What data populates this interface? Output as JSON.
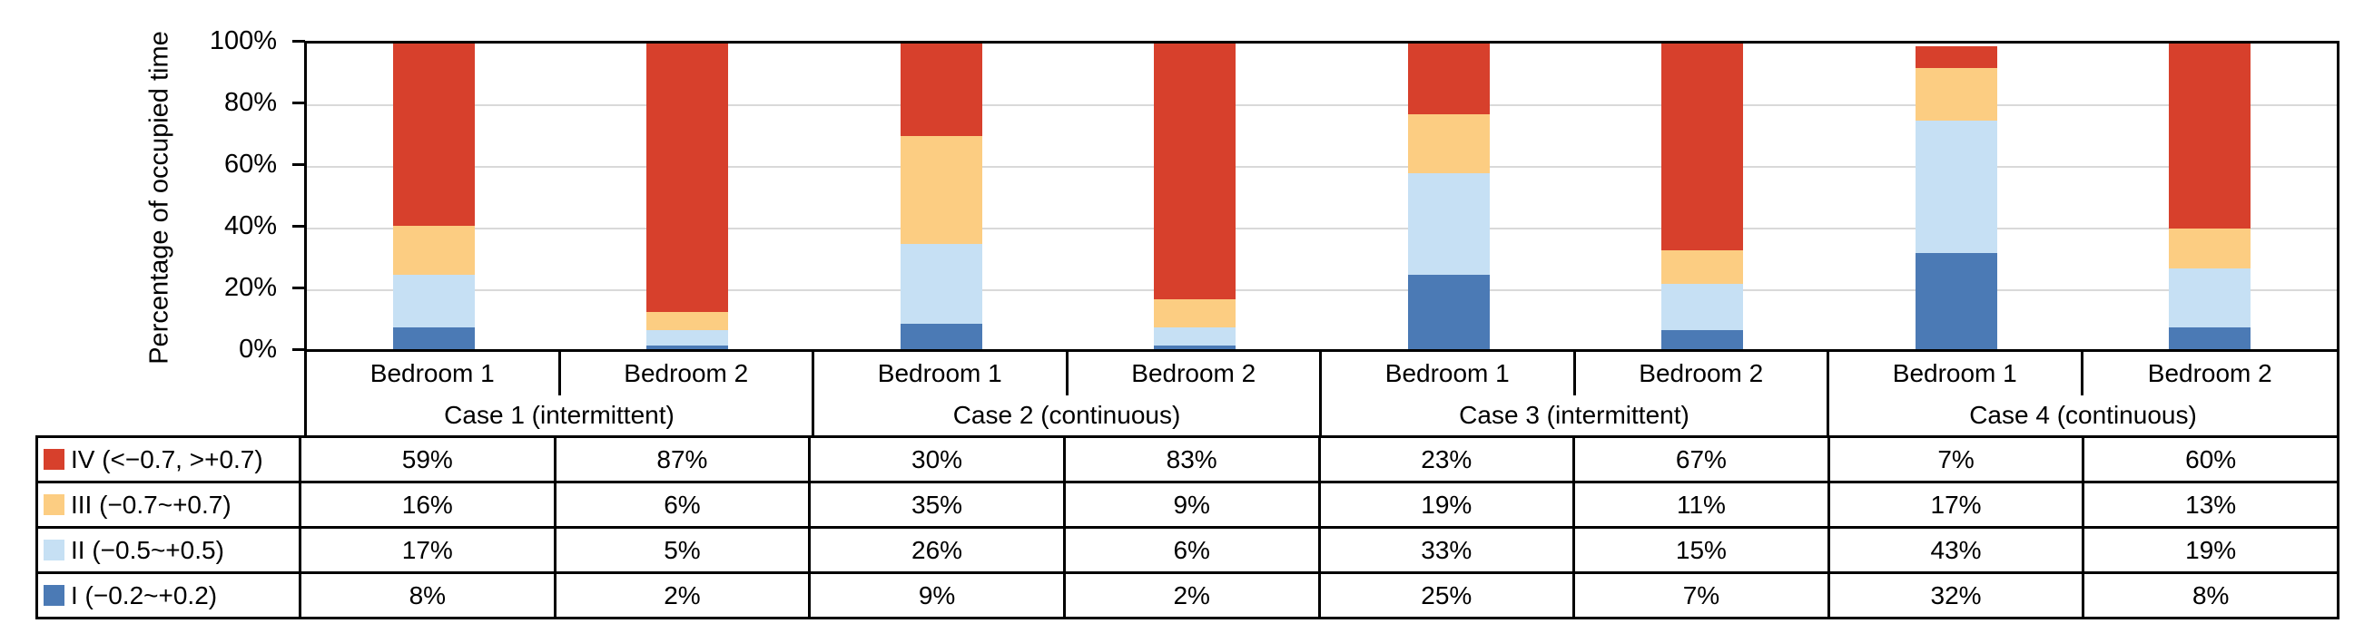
{
  "chart_data": {
    "type": "bar",
    "variant": "stacked-100-percent",
    "title": "",
    "ylabel": "Percentage of occupied time",
    "xlabel": "",
    "ylim": [
      0,
      100
    ],
    "yticks": [
      0,
      20,
      40,
      60,
      80,
      100
    ],
    "ytick_suffix": "%",
    "grid": true,
    "legend_position": "table-rows-left",
    "case_labels": [
      "Case 1 (intermittent)",
      "Case 2 (continuous)",
      "Case 3 (intermittent)",
      "Case 4 (continuous)"
    ],
    "categories": [
      "Bedroom 1",
      "Bedroom 2",
      "Bedroom 1",
      "Bedroom 2",
      "Bedroom 1",
      "Bedroom 2",
      "Bedroom 1",
      "Bedroom 2"
    ],
    "stack_order_bottom_to_top": [
      "I",
      "II",
      "III",
      "IV"
    ],
    "value_suffix": "%",
    "series": [
      {
        "name": "IV (<−0.7, >+0.7)",
        "color": "#D7402C",
        "values": [
          59,
          87,
          30,
          83,
          23,
          67,
          7,
          60
        ]
      },
      {
        "name": "III (−0.7~+0.7)",
        "color": "#FCCD82",
        "values": [
          16,
          6,
          35,
          9,
          19,
          11,
          17,
          13
        ]
      },
      {
        "name": "II (−0.5~+0.5)",
        "color": "#C6E0F4",
        "values": [
          17,
          5,
          26,
          6,
          33,
          15,
          43,
          19
        ]
      },
      {
        "name": "I (−0.2~+0.2)",
        "color": "#4B7AB5",
        "values": [
          8,
          2,
          9,
          2,
          25,
          7,
          32,
          8
        ]
      }
    ]
  },
  "colors": {
    "axis": "#000000",
    "gridline": "#D9D9D9",
    "background": "#FFFFFF",
    "text": "#000000"
  }
}
